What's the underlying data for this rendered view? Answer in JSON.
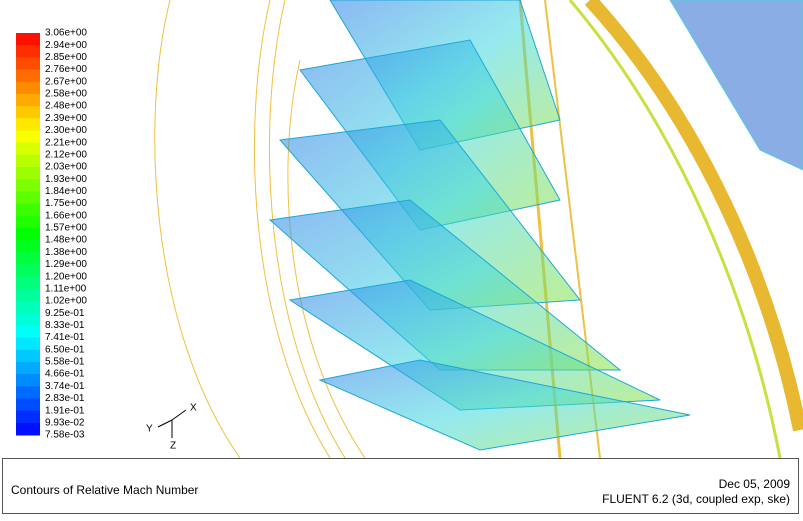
{
  "legend": {
    "labels": [
      "3.06e+00",
      "2.94e+00",
      "2.85e+00",
      "2.76e+00",
      "2.67e+00",
      "2.58e+00",
      "2.48e+00",
      "2.39e+00",
      "2.30e+00",
      "2.21e+00",
      "2.12e+00",
      "2.03e+00",
      "1.93e+00",
      "1.84e+00",
      "1.75e+00",
      "1.66e+00",
      "1.57e+00",
      "1.48e+00",
      "1.38e+00",
      "1.29e+00",
      "1.20e+00",
      "1.11e+00",
      "1.02e+00",
      "9.25e-01",
      "8.33e-01",
      "7.41e-01",
      "6.50e-01",
      "5.58e-01",
      "4.66e-01",
      "3.74e-01",
      "2.83e-01",
      "1.91e-01",
      "9.93e-02",
      "7.58e-03"
    ]
  },
  "axes": {
    "x": "X",
    "y": "Y",
    "z": "Z"
  },
  "footer": {
    "title": "Contours of Relative Mach Number",
    "date": "Dec 05, 2009",
    "solver": "FLUENT 6.2 (3d, coupled exp, ske)"
  }
}
